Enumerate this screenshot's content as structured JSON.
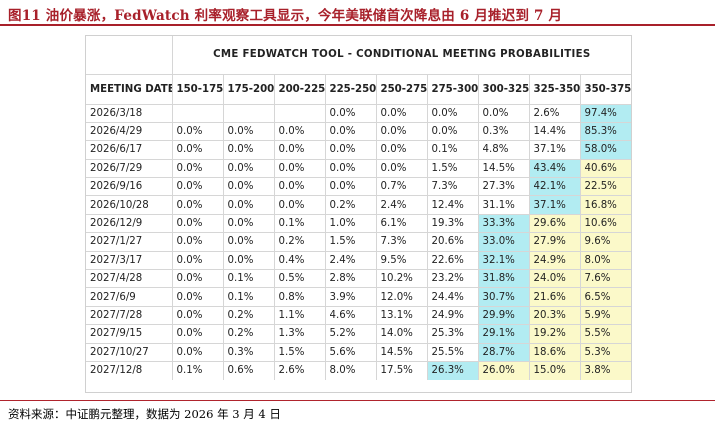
{
  "figure": {
    "title": "图11    油价暴涨，FedWatch 利率观察工具显示，今年美联储首次降息由 6 月推迟到 7 月",
    "source": "资料来源：中证鹏元整理，数据为 2026 年 3 月 4 日"
  },
  "table": {
    "banner": "CME FEDWATCH TOOL - CONDITIONAL MEETING PROBABILITIES",
    "columns": [
      "MEETING DATE",
      "150-175",
      "175-200",
      "200-225",
      "225-250",
      "250-275",
      "275-300",
      "300-325",
      "325-350",
      "350-375"
    ],
    "rows": [
      {
        "cells": [
          "2026/3/18",
          "",
          "",
          "",
          "0.0%",
          "0.0%",
          "0.0%",
          "0.0%",
          "2.6%",
          "97.4%"
        ],
        "hl": [
          "",
          "",
          "",
          "",
          "",
          "",
          "",
          "",
          "",
          "cyan"
        ]
      },
      {
        "cells": [
          "2026/4/29",
          "0.0%",
          "0.0%",
          "0.0%",
          "0.0%",
          "0.0%",
          "0.0%",
          "0.3%",
          "14.4%",
          "85.3%"
        ],
        "hl": [
          "",
          "",
          "",
          "",
          "",
          "",
          "",
          "",
          "",
          "cyan"
        ]
      },
      {
        "cells": [
          "2026/6/17",
          "0.0%",
          "0.0%",
          "0.0%",
          "0.0%",
          "0.0%",
          "0.1%",
          "4.8%",
          "37.1%",
          "58.0%"
        ],
        "hl": [
          "",
          "",
          "",
          "",
          "",
          "",
          "",
          "",
          "",
          "cyan"
        ]
      },
      {
        "cells": [
          "2026/7/29",
          "0.0%",
          "0.0%",
          "0.0%",
          "0.0%",
          "0.0%",
          "1.5%",
          "14.5%",
          "43.4%",
          "40.6%"
        ],
        "hl": [
          "",
          "",
          "",
          "",
          "",
          "",
          "",
          "",
          "cyan",
          "yellow"
        ]
      },
      {
        "cells": [
          "2026/9/16",
          "0.0%",
          "0.0%",
          "0.0%",
          "0.0%",
          "0.7%",
          "7.3%",
          "27.3%",
          "42.1%",
          "22.5%"
        ],
        "hl": [
          "",
          "",
          "",
          "",
          "",
          "",
          "",
          "",
          "cyan",
          "yellow"
        ]
      },
      {
        "cells": [
          "2026/10/28",
          "0.0%",
          "0.0%",
          "0.0%",
          "0.2%",
          "2.4%",
          "12.4%",
          "31.1%",
          "37.1%",
          "16.8%"
        ],
        "hl": [
          "",
          "",
          "",
          "",
          "",
          "",
          "",
          "",
          "cyan",
          "yellow"
        ]
      },
      {
        "cells": [
          "2026/12/9",
          "0.0%",
          "0.0%",
          "0.1%",
          "1.0%",
          "6.1%",
          "19.3%",
          "33.3%",
          "29.6%",
          "10.6%"
        ],
        "hl": [
          "",
          "",
          "",
          "",
          "",
          "",
          "",
          "cyan",
          "yellow",
          "yellow"
        ]
      },
      {
        "cells": [
          "2027/1/27",
          "0.0%",
          "0.0%",
          "0.2%",
          "1.5%",
          "7.3%",
          "20.6%",
          "33.0%",
          "27.9%",
          "9.6%"
        ],
        "hl": [
          "",
          "",
          "",
          "",
          "",
          "",
          "",
          "cyan",
          "yellow",
          "yellow"
        ]
      },
      {
        "cells": [
          "2027/3/17",
          "0.0%",
          "0.0%",
          "0.4%",
          "2.4%",
          "9.5%",
          "22.6%",
          "32.1%",
          "24.9%",
          "8.0%"
        ],
        "hl": [
          "",
          "",
          "",
          "",
          "",
          "",
          "",
          "cyan",
          "yellow",
          "yellow"
        ]
      },
      {
        "cells": [
          "2027/4/28",
          "0.0%",
          "0.1%",
          "0.5%",
          "2.8%",
          "10.2%",
          "23.2%",
          "31.8%",
          "24.0%",
          "7.6%"
        ],
        "hl": [
          "",
          "",
          "",
          "",
          "",
          "",
          "",
          "cyan",
          "yellow",
          "yellow"
        ]
      },
      {
        "cells": [
          "2027/6/9",
          "0.0%",
          "0.1%",
          "0.8%",
          "3.9%",
          "12.0%",
          "24.4%",
          "30.7%",
          "21.6%",
          "6.5%"
        ],
        "hl": [
          "",
          "",
          "",
          "",
          "",
          "",
          "",
          "cyan",
          "yellow",
          "yellow"
        ]
      },
      {
        "cells": [
          "2027/7/28",
          "0.0%",
          "0.2%",
          "1.1%",
          "4.6%",
          "13.1%",
          "24.9%",
          "29.9%",
          "20.3%",
          "5.9%"
        ],
        "hl": [
          "",
          "",
          "",
          "",
          "",
          "",
          "",
          "cyan",
          "yellow",
          "yellow"
        ]
      },
      {
        "cells": [
          "2027/9/15",
          "0.0%",
          "0.2%",
          "1.3%",
          "5.2%",
          "14.0%",
          "25.3%",
          "29.1%",
          "19.2%",
          "5.5%"
        ],
        "hl": [
          "",
          "",
          "",
          "",
          "",
          "",
          "",
          "cyan",
          "yellow",
          "yellow"
        ]
      },
      {
        "cells": [
          "2027/10/27",
          "0.0%",
          "0.3%",
          "1.5%",
          "5.6%",
          "14.5%",
          "25.5%",
          "28.7%",
          "18.6%",
          "5.3%"
        ],
        "hl": [
          "",
          "",
          "",
          "",
          "",
          "",
          "",
          "cyan",
          "yellow",
          "yellow"
        ]
      },
      {
        "cells": [
          "2027/12/8",
          "0.1%",
          "0.6%",
          "2.6%",
          "8.0%",
          "17.5%",
          "26.3%",
          "26.0%",
          "15.0%",
          "3.8%"
        ],
        "hl": [
          "",
          "",
          "",
          "",
          "",
          "",
          "cyan",
          "yellow",
          "yellow",
          "yellow"
        ]
      }
    ]
  },
  "colors": {
    "accent": "#a8202a",
    "highlight_max": "#b2ecf2",
    "highlight_secondary": "#fbf9c9"
  }
}
